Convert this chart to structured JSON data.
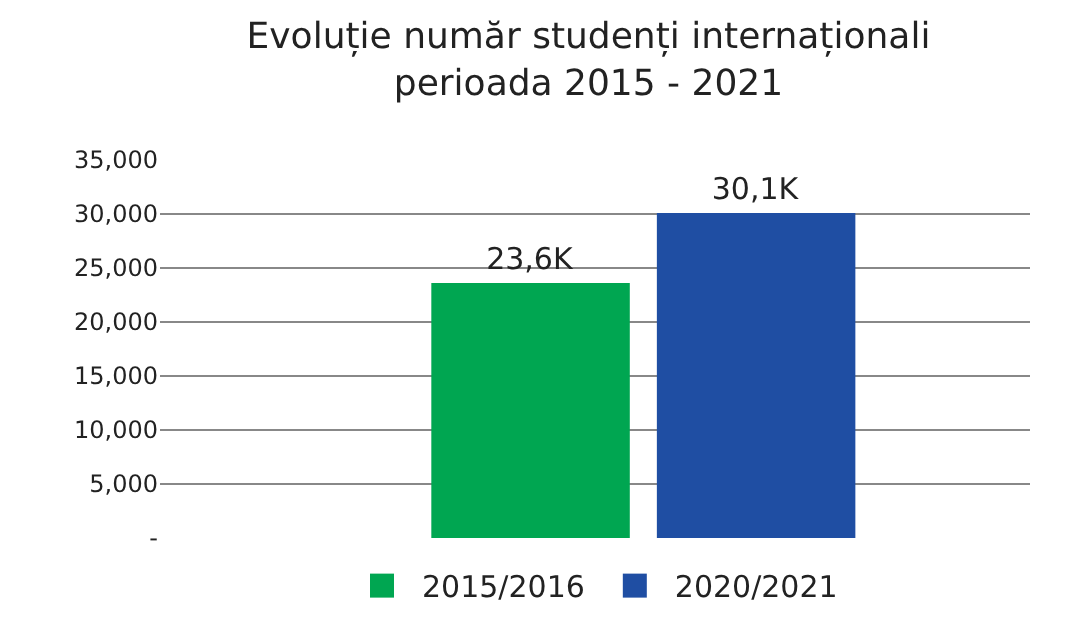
{
  "chart_data": {
    "type": "bar",
    "title": "Evoluție număr studenți internaționali\nperioada 2015 - 2021",
    "categories": [
      null
    ],
    "series": [
      {
        "name": "2015/2016",
        "color": "#00a651",
        "values": [
          23600
        ],
        "value_labels": [
          "23,6K"
        ]
      },
      {
        "name": "2020/2021",
        "color": "#1f4ea3",
        "values": [
          30100
        ],
        "value_labels": [
          "30,1K"
        ]
      }
    ],
    "ylim": [
      0,
      35000
    ],
    "yticks": [
      {
        "value": 0,
        "label": "-"
      },
      {
        "value": 5000,
        "label": "5,000"
      },
      {
        "value": 10000,
        "label": "10,000"
      },
      {
        "value": 15000,
        "label": "15,000"
      },
      {
        "value": 20000,
        "label": "20,000"
      },
      {
        "value": 25000,
        "label": "25,000"
      },
      {
        "value": 30000,
        "label": "30,000"
      },
      {
        "value": 35000,
        "label": "35,000"
      }
    ],
    "grid": "y",
    "legend": "bottom"
  }
}
